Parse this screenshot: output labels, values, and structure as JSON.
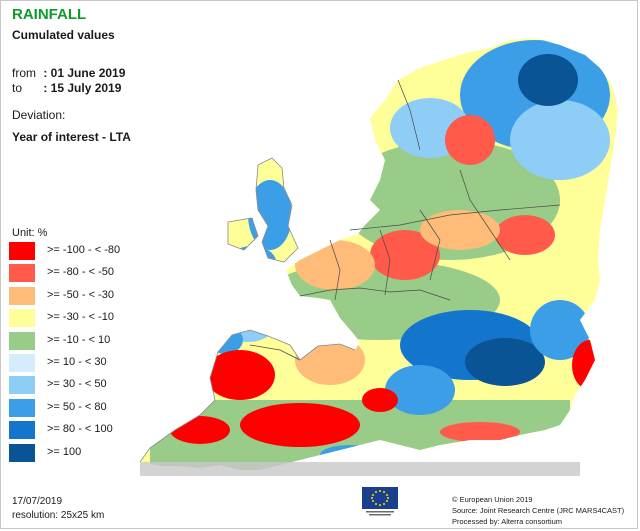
{
  "title": "RAINFALL",
  "subtitle": "Cumulated values",
  "period": {
    "from_label": "from",
    "from_value": ": 01 June 2019",
    "to_label": "to",
    "to_value": ": 15 July 2019"
  },
  "deviation": {
    "label": "Deviation:",
    "value": "Year of interest - LTA"
  },
  "legend": {
    "unit": "Unit: %",
    "classes": [
      {
        "label": ">= -100 - < -80",
        "color": "#ff0000"
      },
      {
        "label": ">= -80 - < -50",
        "color": "#ff5a4a"
      },
      {
        "label": ">= -50 - < -30",
        "color": "#ffbb78"
      },
      {
        "label": ">= -30 - < -10",
        "color": "#ffff99"
      },
      {
        "label": ">= -10 - < 10",
        "color": "#99cc88"
      },
      {
        "label": ">= 10 - < 30",
        "color": "#d4ecfb"
      },
      {
        "label": ">= 30 - < 50",
        "color": "#8ecdf5"
      },
      {
        "label": ">= 50 - < 80",
        "color": "#3d9ee8"
      },
      {
        "label": ">= 80 - < 100",
        "color": "#1475cc"
      },
      {
        "label": ">= 100",
        "color": "#0a5394"
      }
    ]
  },
  "footer": {
    "date": "17/07/2019",
    "resolution": "resolution: 25x25 km",
    "credits": [
      "© European Union 2019",
      "Source: Joint Research Centre (JRC MARS4CAST)",
      "Processed by: Alterra consortium"
    ]
  },
  "map_colors": {
    "sea": "#ffffff",
    "outside_domain": "#c8c8c8",
    "borders": "#4a4a4a"
  }
}
